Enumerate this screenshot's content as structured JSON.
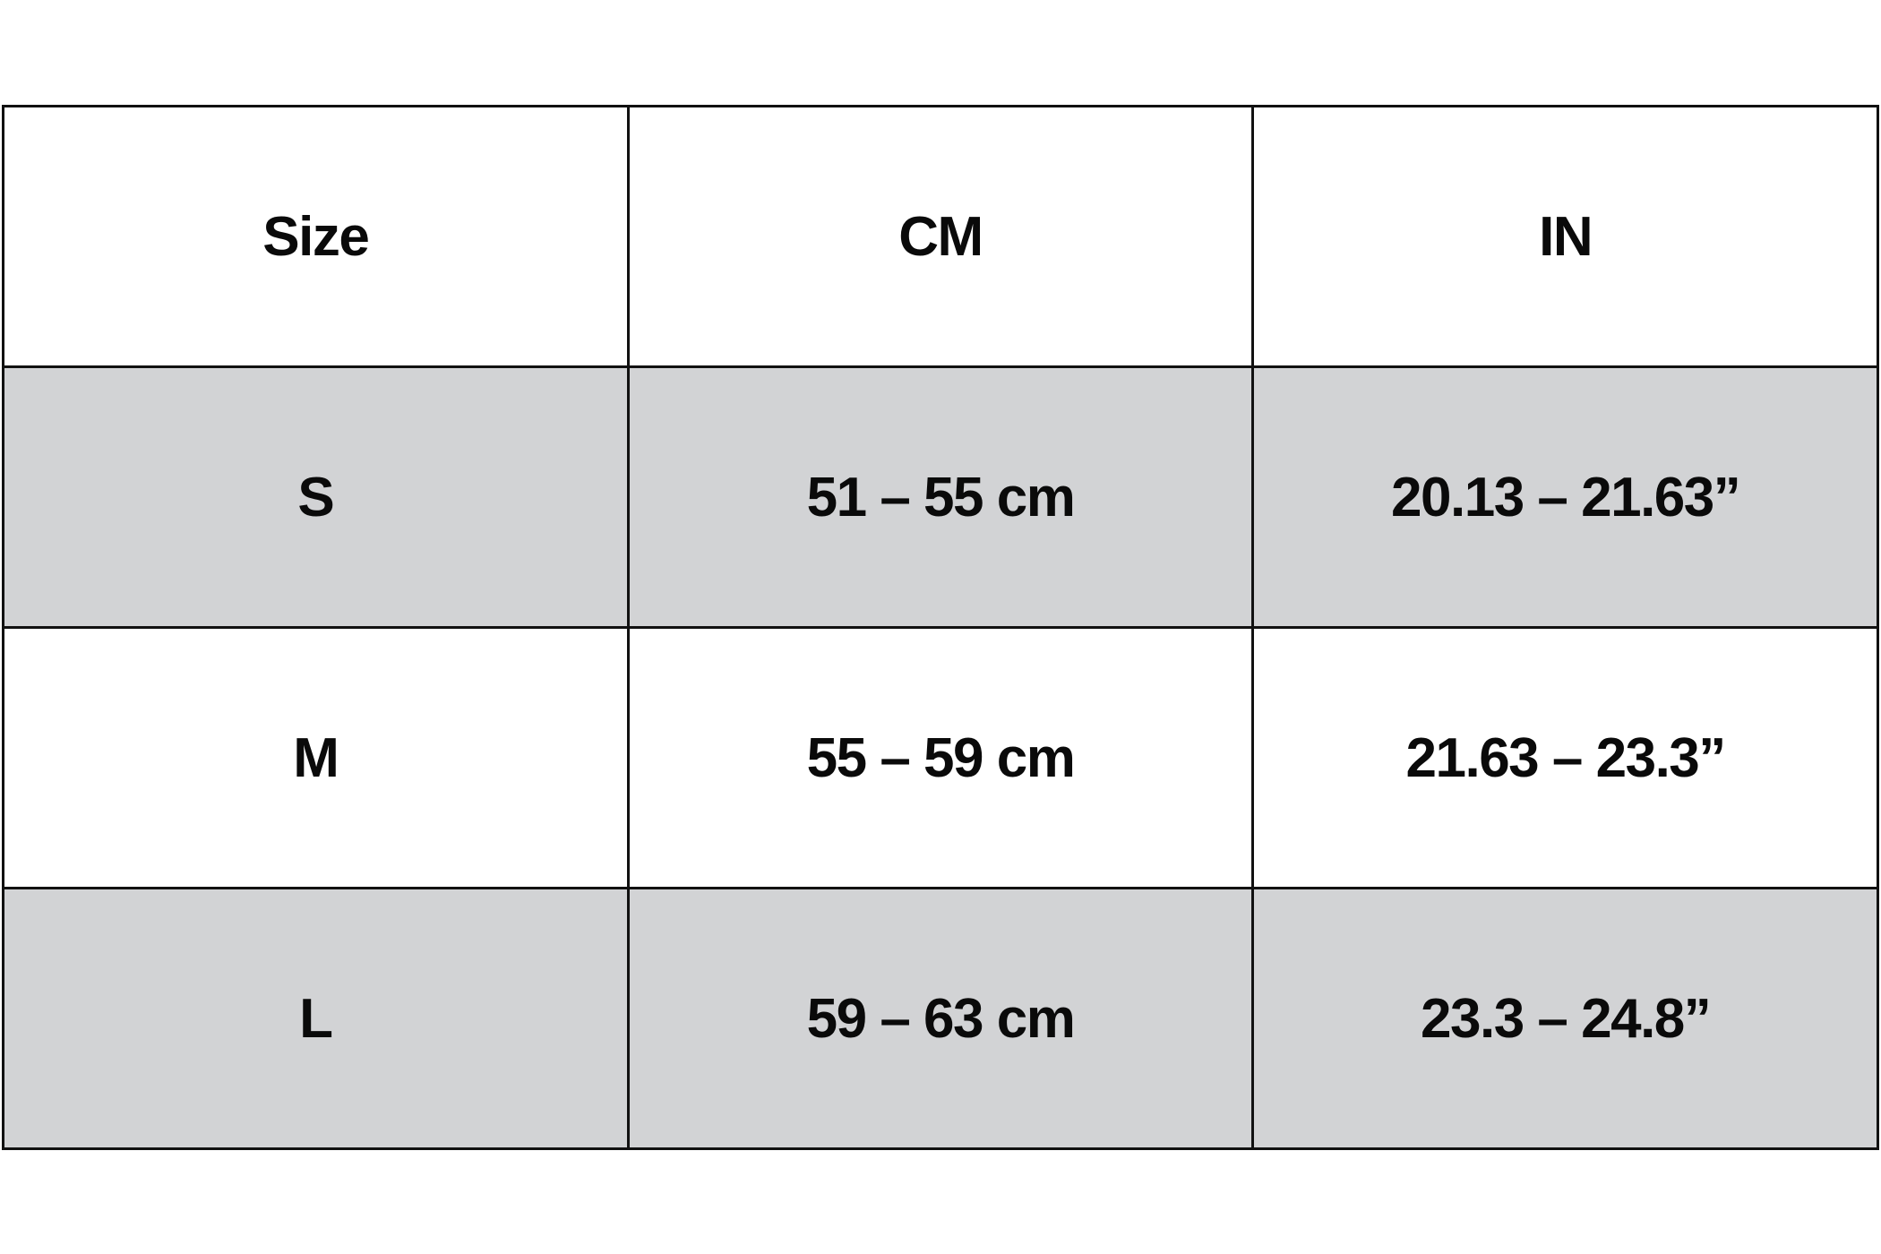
{
  "table": {
    "headers": [
      "Size",
      "CM",
      "IN"
    ],
    "rows": [
      [
        "S",
        "51 – 55 cm",
        "20.13 – 21.63”"
      ],
      [
        "M",
        "55 – 59 cm",
        "21.63 – 23.3”"
      ],
      [
        "L",
        "59 – 63 cm",
        "23.3 – 24.8”"
      ]
    ],
    "shaded_row_color": "#d2d3d5"
  }
}
